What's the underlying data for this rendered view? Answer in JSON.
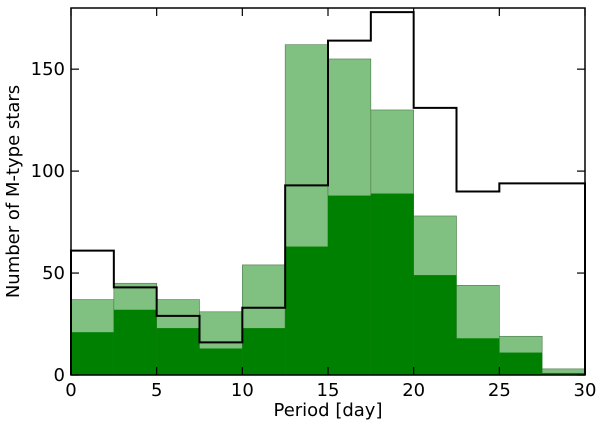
{
  "chart_data": {
    "type": "bar",
    "xlabel": "Period [day]",
    "ylabel": "Number of M-type stars",
    "xlim": [
      0,
      30
    ],
    "ylim": [
      0,
      180
    ],
    "xticks": [
      0,
      5,
      10,
      15,
      20,
      25,
      30
    ],
    "yticks": [
      0,
      50,
      100,
      150
    ],
    "grid": false,
    "legend": "none",
    "bin_edges": [
      0,
      2.5,
      5,
      7.5,
      10,
      12.5,
      15,
      17.5,
      20,
      22.5,
      25,
      27.5,
      30
    ],
    "series": [
      {
        "style": "filled-light",
        "color": "#80c080",
        "values": [
          37,
          45,
          37,
          31,
          54,
          162,
          155,
          130,
          78,
          44,
          19,
          3
        ]
      },
      {
        "style": "filled-dark",
        "color": "#008000",
        "values": [
          21,
          32,
          23,
          13,
          23,
          63,
          88,
          89,
          49,
          18,
          11,
          1
        ]
      },
      {
        "style": "step-outline",
        "color": "#000000",
        "values": [
          61,
          43,
          29,
          16,
          33,
          93,
          164,
          178,
          131,
          90,
          94,
          94
        ]
      }
    ]
  }
}
